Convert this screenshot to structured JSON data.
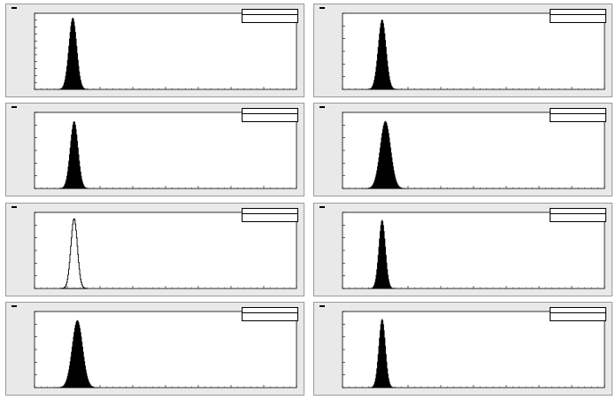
{
  "pad_title": "",
  "stats_labels": {
    "header": "",
    "entries": "",
    "mean": ""
  },
  "chart_data": [
    {
      "type": "histogram",
      "pad": 1,
      "xlim": [
        0,
        400
      ],
      "ylim": [
        0,
        3300
      ],
      "x_ticks": [
        0,
        50,
        100,
        150,
        200,
        250,
        300,
        350,
        400
      ],
      "y_ticks": [
        300,
        600,
        900,
        1200,
        1500,
        1800,
        2100,
        2400,
        2700,
        3000,
        3300
      ],
      "tick_labels": {
        "x": [],
        "y": []
      },
      "peak": {
        "center": 58,
        "sigma": 6,
        "height": 3100
      },
      "stats": {
        "entries": "",
        "mean": ""
      },
      "fill": "#000000"
    },
    {
      "type": "histogram",
      "pad": 2,
      "xlim": [
        0,
        400
      ],
      "ylim": [
        0,
        3000
      ],
      "x_ticks": [
        0,
        50,
        100,
        150,
        200,
        250,
        300,
        350,
        400
      ],
      "y_ticks": [
        500,
        1000,
        1500,
        2000,
        2500,
        3000
      ],
      "tick_labels": {
        "x": [],
        "y": []
      },
      "peak": {
        "center": 60,
        "sigma": 6,
        "height": 2750
      },
      "stats": {
        "entries": "",
        "mean": ""
      },
      "fill": "#000000"
    },
    {
      "type": "histogram",
      "pad": 3,
      "xlim": [
        0,
        400
      ],
      "ylim": [
        0,
        3000
      ],
      "x_ticks": [
        0,
        50,
        100,
        150,
        200,
        250,
        300,
        350,
        400
      ],
      "y_ticks": [
        500,
        1000,
        1500,
        2000,
        2500,
        3000
      ],
      "tick_labels": {
        "x": [],
        "y": []
      },
      "peak": {
        "center": 60,
        "sigma": 6,
        "height": 2650
      },
      "stats": {
        "entries": "",
        "mean": ""
      },
      "fill": "#000000"
    },
    {
      "type": "histogram",
      "pad": 4,
      "xlim": [
        0,
        400
      ],
      "ylim": [
        0,
        3000
      ],
      "x_ticks": [
        0,
        50,
        100,
        150,
        200,
        250,
        300,
        350,
        400
      ],
      "y_ticks": [
        500,
        1000,
        1500,
        2000,
        2500,
        3000
      ],
      "tick_labels": {
        "x": [],
        "y": []
      },
      "peak": {
        "center": 65,
        "sigma": 8,
        "height": 2650
      },
      "stats": {
        "entries": "",
        "mean": ""
      },
      "fill": "#000000"
    },
    {
      "type": "histogram",
      "pad": 5,
      "xlim": [
        0,
        400
      ],
      "ylim": [
        0,
        3000
      ],
      "x_ticks": [
        0,
        50,
        100,
        150,
        200,
        250,
        300,
        350,
        400
      ],
      "y_ticks": [
        500,
        1000,
        1500,
        2000,
        2500,
        3000
      ],
      "tick_labels": {
        "x": [],
        "y": []
      },
      "peak": {
        "center": 60,
        "sigma": 5,
        "height": 2750
      },
      "stats": {
        "entries": "",
        "mean": ""
      },
      "fill": "#000000",
      "outline_only": true
    },
    {
      "type": "histogram",
      "pad": 6,
      "xlim": [
        0,
        400
      ],
      "ylim": [
        0,
        3000
      ],
      "x_ticks": [
        0,
        50,
        100,
        150,
        200,
        250,
        300,
        350,
        400
      ],
      "y_ticks": [
        500,
        1000,
        1500,
        2000,
        2500,
        3000
      ],
      "tick_labels": {
        "x": [],
        "y": []
      },
      "peak": {
        "center": 60,
        "sigma": 5,
        "height": 2700
      },
      "stats": {
        "entries": "",
        "mean": ""
      },
      "fill": "#000000"
    },
    {
      "type": "histogram",
      "pad": 7,
      "xlim": [
        0,
        400
      ],
      "ylim": [
        0,
        3000
      ],
      "x_ticks": [
        0,
        50,
        100,
        150,
        200,
        250,
        300,
        350,
        400
      ],
      "y_ticks": [
        500,
        1000,
        1500,
        2000,
        2500,
        3000
      ],
      "tick_labels": {
        "x": [],
        "y": []
      },
      "peak": {
        "center": 65,
        "sigma": 8,
        "height": 2650
      },
      "stats": {
        "entries": "",
        "mean": ""
      },
      "fill": "#000000"
    },
    {
      "type": "histogram",
      "pad": 8,
      "xlim": [
        0,
        400
      ],
      "ylim": [
        0,
        3000
      ],
      "x_ticks": [
        0,
        50,
        100,
        150,
        200,
        250,
        300,
        350,
        400
      ],
      "y_ticks": [
        500,
        1000,
        1500,
        2000,
        2500,
        3000
      ],
      "tick_labels": {
        "x": [],
        "y": []
      },
      "peak": {
        "center": 60,
        "sigma": 5,
        "height": 2700
      },
      "stats": {
        "entries": "",
        "mean": ""
      },
      "fill": "#000000"
    }
  ]
}
